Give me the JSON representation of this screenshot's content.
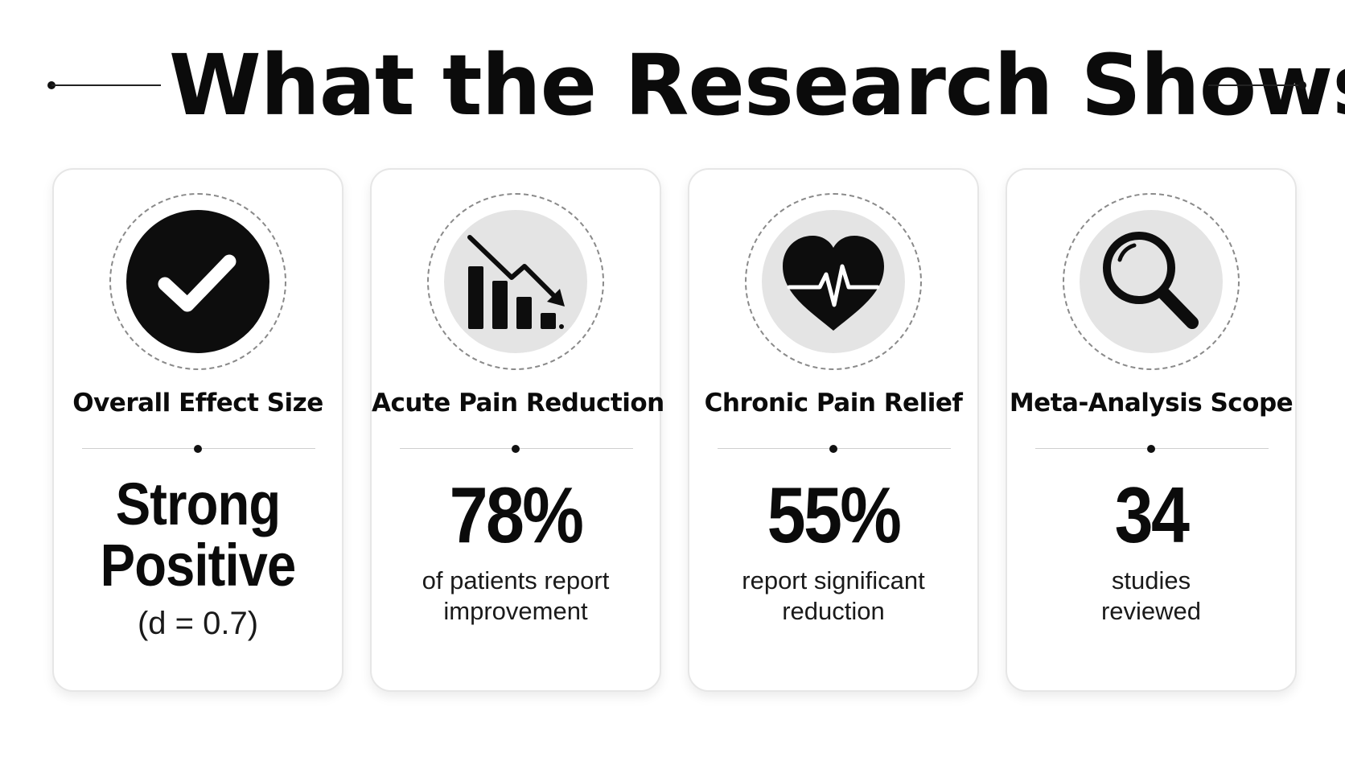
{
  "header": {
    "title": "What the Research Shows"
  },
  "cards": [
    {
      "icon": "check-circle-icon",
      "label": "Overall Effect Size",
      "value_line1": "Strong",
      "value_line2": "Positive",
      "sub": "(d = 0.7)"
    },
    {
      "icon": "declining-bar-chart-icon",
      "label": "Acute Pain Reduction",
      "value": "78%",
      "sub_line1": "of patients report",
      "sub_line2": "improvement"
    },
    {
      "icon": "heart-pulse-icon",
      "label": "Chronic Pain Relief",
      "value": "55%",
      "sub_line1": "report significant",
      "sub_line2": "reduction"
    },
    {
      "icon": "magnifying-glass-icon",
      "label": "Meta-Analysis Scope",
      "value": "34",
      "sub_line1": "studies",
      "sub_line2": "reviewed"
    }
  ]
}
